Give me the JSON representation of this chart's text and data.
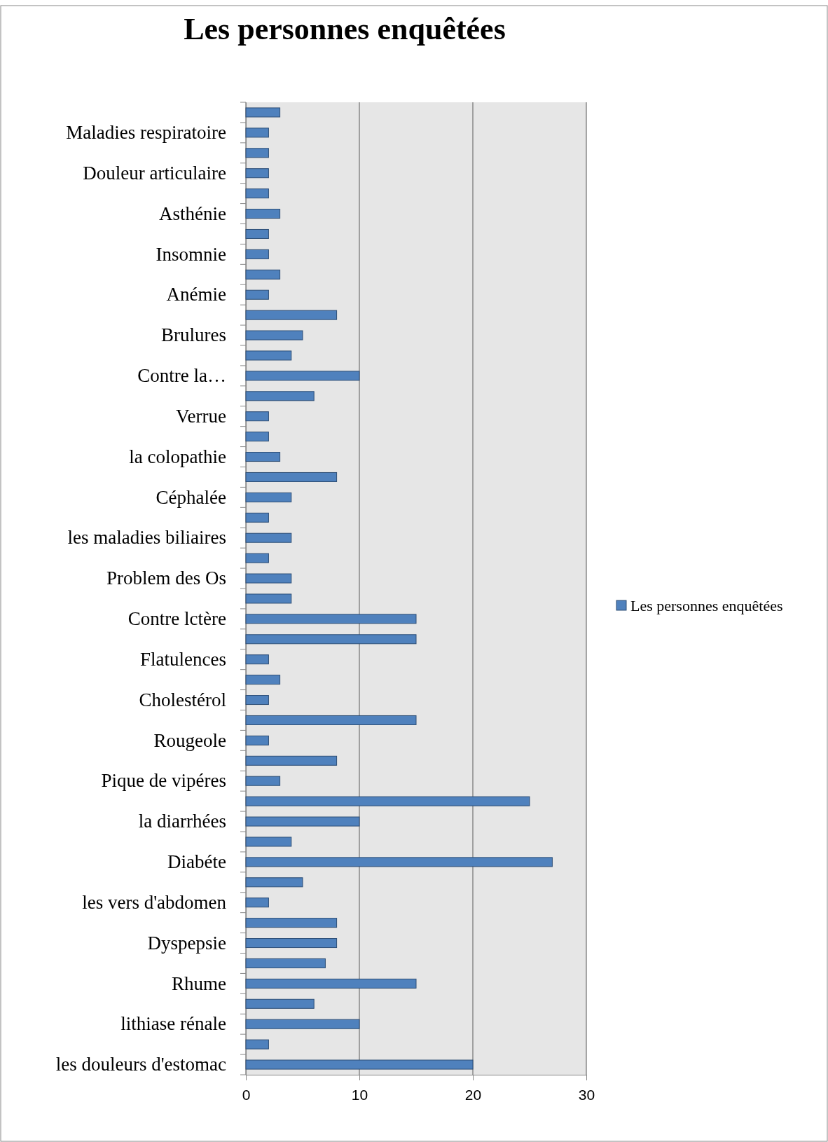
{
  "chart_data": {
    "type": "bar",
    "orientation": "horizontal",
    "title": "Les personnes enquêtées",
    "categories": [
      null,
      "Maladies respiratoire",
      null,
      "Douleur articulaire",
      null,
      "Asthénie",
      null,
      "Insomnie",
      null,
      "Anémie",
      null,
      "Brulures",
      null,
      "Contre  la…",
      null,
      "Verrue",
      null,
      "la colopathie",
      null,
      "Céphalée",
      null,
      "les maladies biliaires",
      null,
      "Problem des Os",
      null,
      "Contre lctère",
      null,
      "Flatulences",
      null,
      "Cholestérol",
      null,
      "Rougeole",
      null,
      "Pique de vipéres",
      null,
      "la diarrhées",
      null,
      "Diabéte",
      null,
      "les vers d'abdomen",
      null,
      "Dyspepsie",
      null,
      "Rhume",
      null,
      "lithiase rénale",
      null,
      "les douleurs d'estomac"
    ],
    "series": [
      {
        "name": "Les personnes enquêtées",
        "color": "#4f81bd",
        "values": [
          3,
          2,
          2,
          2,
          2,
          3,
          2,
          2,
          3,
          2,
          8,
          5,
          4,
          10,
          6,
          2,
          2,
          3,
          8,
          4,
          2,
          4,
          2,
          4,
          4,
          15,
          15,
          2,
          3,
          2,
          15,
          2,
          8,
          3,
          25,
          10,
          4,
          27,
          5,
          2,
          8,
          8,
          7,
          15,
          6,
          10,
          2,
          20
        ]
      }
    ],
    "xlim": [
      0,
      30
    ],
    "xticks": [
      0,
      10,
      20,
      30
    ],
    "grid": "x",
    "legend": "right"
  }
}
